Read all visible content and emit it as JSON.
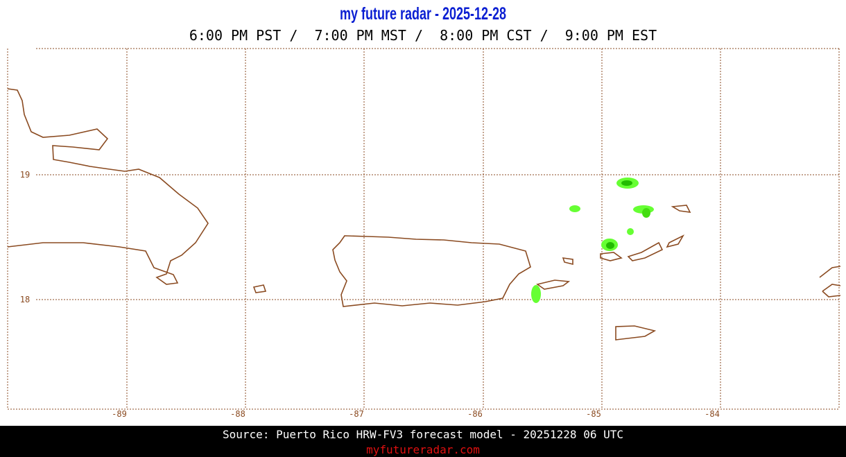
{
  "header": {
    "title": "my future radar - 2025-12-28",
    "times": "6:00 PM PST /  7:00 PM MST /  8:00 PM CST /  9:00 PM EST"
  },
  "map": {
    "lon_labels": [
      "-89",
      "-88",
      "-87",
      "-86",
      "-85",
      "-84"
    ],
    "lat_labels": [
      "19",
      "18"
    ]
  },
  "footer": {
    "source": "Source: Puerto Rico HRW-FV3 forecast model - 20251228 06 UTC",
    "site": "myfutureradar.com"
  }
}
